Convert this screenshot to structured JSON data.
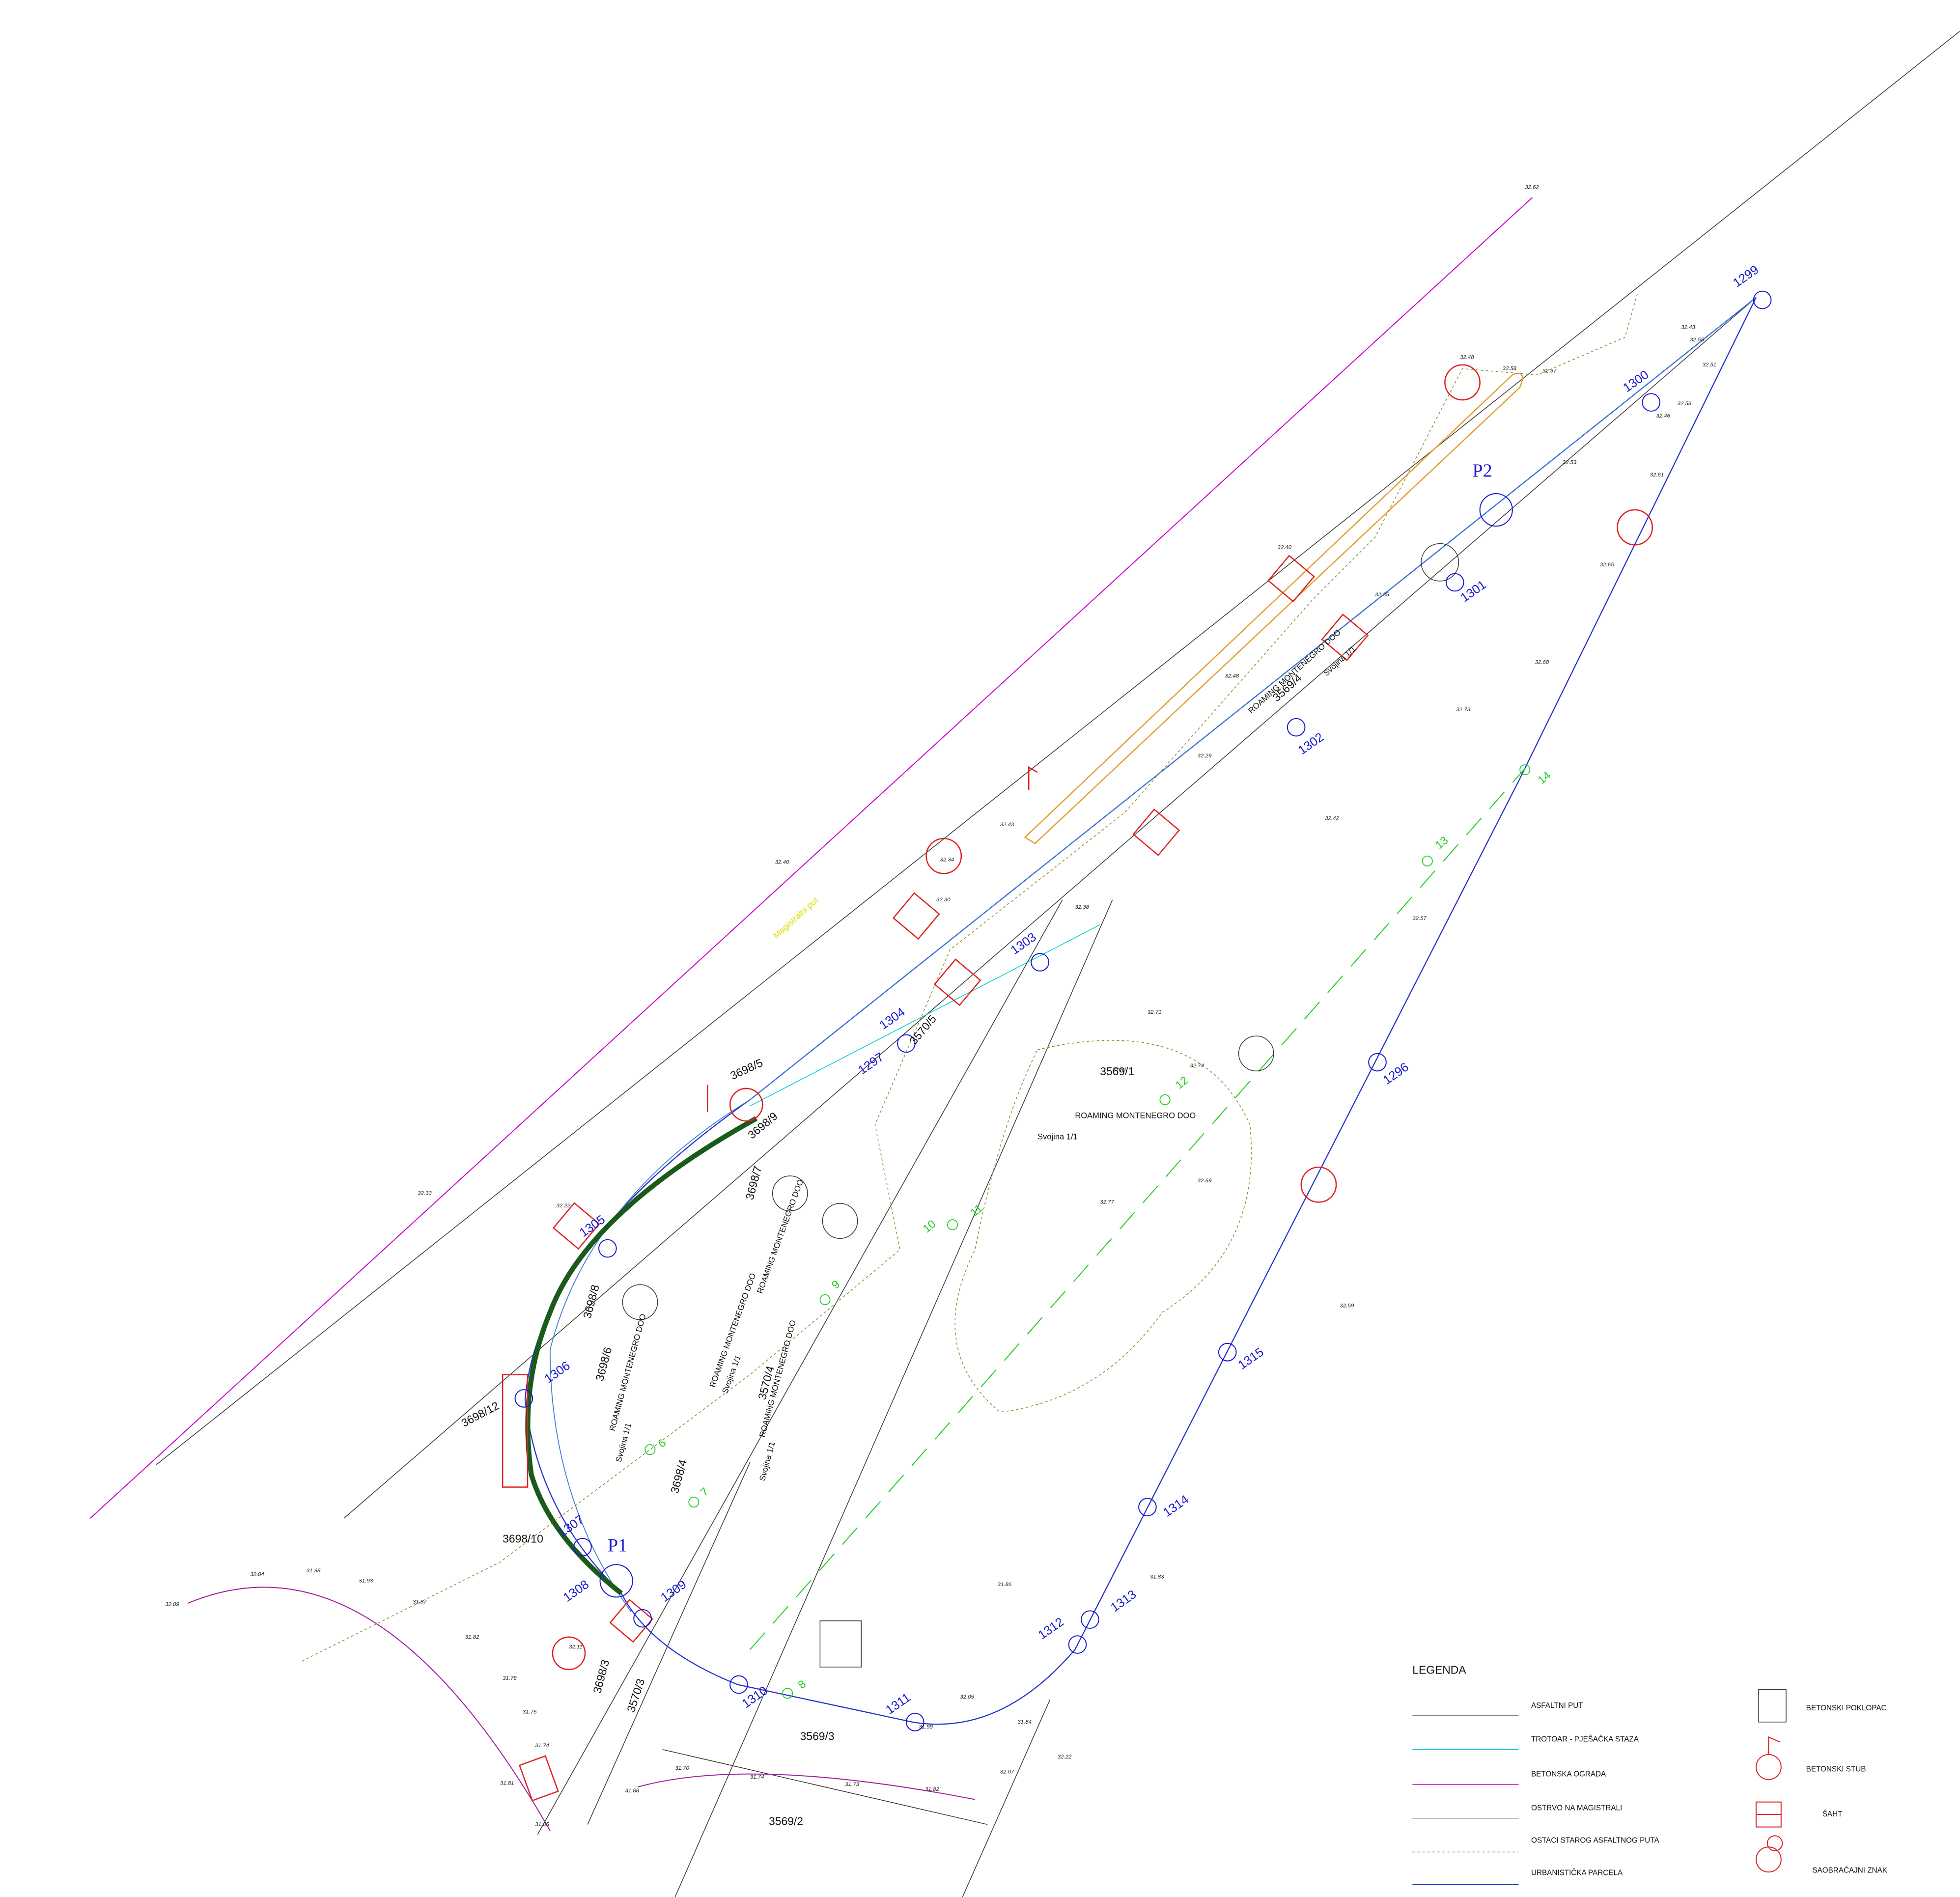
{
  "title": "LEGENDA",
  "road_name": "Magistralni put",
  "parcels": [
    "3569/4",
    "3569/1",
    "3569/2",
    "3569/3",
    "3570/5",
    "3570/4",
    "3570/3",
    "3698/5",
    "3698/7",
    "3698/6",
    "3698/4",
    "3698/3",
    "3698/10",
    "3698/12",
    "3698/8",
    "3698/9"
  ],
  "owner": "ROAMING MONTENEGRO DOO",
  "share": "Svojina 1/1",
  "boundary_points": [
    "1299",
    "1300",
    "1301",
    "1302",
    "1303",
    "1304",
    "1305",
    "1306",
    "1307",
    "1308",
    "1309",
    "1310",
    "1311",
    "1312",
    "1313",
    "1314",
    "1315",
    "1296",
    "1297"
  ],
  "stations": [
    "P1",
    "P2"
  ],
  "chainage": [
    "6",
    "7",
    "8",
    "9",
    "10",
    "11",
    "12",
    "13",
    "14"
  ],
  "elevations": [
    "32.62",
    "32.43",
    "32.55",
    "32.51",
    "32.58",
    "32.46",
    "32.48",
    "32.58",
    "32.57",
    "32.53",
    "32.61",
    "32.65",
    "32.68",
    "32.73",
    "32.40",
    "32.35",
    "32.48",
    "32.29",
    "32.43",
    "32.42",
    "32.34",
    "32.30",
    "32.38",
    "32.71",
    "32.81",
    "32.74",
    "32.69",
    "32.77",
    "32.59",
    "32.57",
    "32.40",
    "32.33",
    "32.22",
    "32.04",
    "31.98",
    "31.93",
    "31.87",
    "31.82",
    "31.78",
    "31.75",
    "31.74",
    "31.81",
    "31.85",
    "31.70",
    "31.74",
    "31.73",
    "31.82",
    "32.07",
    "32.22",
    "31.88",
    "32.09",
    "32.11",
    "31.99",
    "32.05",
    "31.84",
    "31.86",
    "31.83"
  ],
  "legend": [
    {
      "label": "ASFALTNI PUT"
    },
    {
      "label": "TROTOAR - PJEŠAČKA STAZA"
    },
    {
      "label": "BETONSKA OGRADA"
    },
    {
      "label": "OSTRVO NA MAGISTRALI"
    },
    {
      "label": "OSTACI STAROG ASFALTNOG PUTA"
    },
    {
      "label": "URBANISTIČKA PARCELA"
    },
    {
      "label": "BETONSKI POKLOPAC"
    },
    {
      "label": "BETONSKI STUB"
    },
    {
      "label": "ŠAHT"
    },
    {
      "label": "SAOBRAĆAJNI ZNAK"
    }
  ]
}
